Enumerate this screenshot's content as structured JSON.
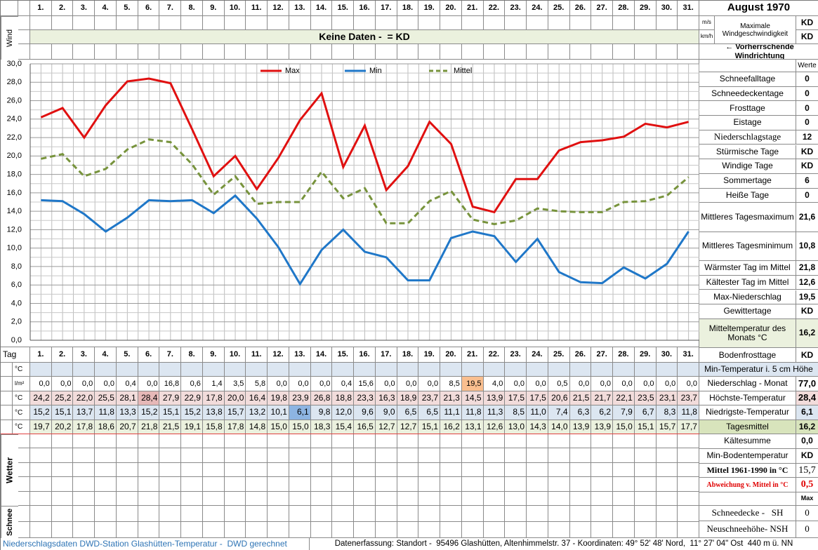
{
  "header": {
    "title": "August 1970"
  },
  "wind": {
    "label": "Wind",
    "no_data": "Keine Daten -  = KD",
    "units": [
      "m/s",
      "km/h"
    ],
    "max_label": "Maximale Windgeschwindigkeit",
    "max_values": [
      "KD",
      "KD"
    ],
    "direction": "← Vorherrschende Windrichtung"
  },
  "chart_data": {
    "type": "line",
    "categories": [
      "1.",
      "2.",
      "3.",
      "4.",
      "5.",
      "6.",
      "7.",
      "8.",
      "9.",
      "10.",
      "11.",
      "12.",
      "13.",
      "14.",
      "15.",
      "16.",
      "17.",
      "18.",
      "19.",
      "20.",
      "21.",
      "22.",
      "23.",
      "24.",
      "25.",
      "26.",
      "27.",
      "28.",
      "29.",
      "30.",
      "31."
    ],
    "series": [
      {
        "name": "Max",
        "color": "#e01010",
        "values": [
          24.2,
          25.2,
          22.0,
          25.5,
          28.1,
          28.4,
          27.9,
          22.9,
          17.8,
          20.0,
          16.4,
          19.8,
          23.9,
          26.8,
          18.8,
          23.3,
          16.3,
          18.9,
          23.7,
          21.3,
          14.5,
          13.9,
          17.5,
          17.5,
          20.6,
          21.5,
          21.7,
          22.1,
          23.5,
          23.1,
          23.7
        ],
        "value_labels": [
          "24,2",
          "25,2",
          "22,0",
          "25,5",
          "28,1",
          "28,4",
          "27,9",
          "22,9",
          "17,8",
          "20,0",
          "16,4",
          "19,8",
          "23,9",
          "26,8",
          "18,8",
          "23,3",
          "16,3",
          "18,9",
          "23,7",
          "21,3",
          "14,5",
          "13,9",
          "17,5",
          "17,5",
          "20,6",
          "21,5",
          "21,7",
          "22,1",
          "23,5",
          "23,1",
          "23,7"
        ]
      },
      {
        "name": "Min",
        "color": "#1f77c8",
        "values": [
          15.2,
          15.1,
          13.7,
          11.8,
          13.3,
          15.2,
          15.1,
          15.2,
          13.8,
          15.7,
          13.2,
          10.1,
          6.1,
          9.8,
          12.0,
          9.6,
          9.0,
          6.5,
          6.5,
          11.1,
          11.8,
          11.3,
          8.5,
          11.0,
          7.4,
          6.3,
          6.2,
          7.9,
          6.7,
          8.3,
          11.8
        ],
        "value_labels": [
          "15,2",
          "15,1",
          "13,7",
          "11,8",
          "13,3",
          "15,2",
          "15,1",
          "15,2",
          "13,8",
          "15,7",
          "13,2",
          "10,1",
          "6,1",
          "9,8",
          "12,0",
          "9,6",
          "9,0",
          "6,5",
          "6,5",
          "11,1",
          "11,8",
          "11,3",
          "8,5",
          "11,0",
          "7,4",
          "6,3",
          "6,2",
          "7,9",
          "6,7",
          "8,3",
          "11,8"
        ]
      },
      {
        "name": "Mittel",
        "color": "#77933c",
        "dashed": true,
        "values": [
          19.7,
          20.2,
          17.8,
          18.6,
          20.7,
          21.8,
          21.5,
          19.1,
          15.8,
          17.8,
          14.8,
          15.0,
          15.0,
          18.3,
          15.4,
          16.5,
          12.7,
          12.7,
          15.1,
          16.2,
          13.1,
          12.6,
          13.0,
          14.3,
          14.0,
          13.9,
          13.9,
          15.0,
          15.1,
          15.7,
          17.7
        ],
        "value_labels": [
          "19,7",
          "20,2",
          "17,8",
          "18,6",
          "20,7",
          "21,8",
          "21,5",
          "19,1",
          "15,8",
          "17,8",
          "14,8",
          "15,0",
          "15,0",
          "18,3",
          "15,4",
          "16,5",
          "12,7",
          "12,7",
          "15,1",
          "16,2",
          "13,1",
          "12,6",
          "13,0",
          "14,3",
          "14,0",
          "13,9",
          "13,9",
          "15,0",
          "15,1",
          "15,7",
          "17,7"
        ]
      }
    ],
    "ylim": [
      0,
      30
    ],
    "yticks": [
      {
        "value": 0,
        "label": "0,0"
      },
      {
        "value": 2,
        "label": "2,0"
      },
      {
        "value": 4,
        "label": "4,0"
      },
      {
        "value": 6,
        "label": "6,0"
      },
      {
        "value": 8,
        "label": "8,0"
      },
      {
        "value": 10,
        "label": "10,0"
      },
      {
        "value": 12,
        "label": "12,0"
      },
      {
        "value": 14,
        "label": "14,0"
      },
      {
        "value": 16,
        "label": "16,0"
      },
      {
        "value": 18,
        "label": "18,0"
      },
      {
        "value": 20,
        "label": "20,0"
      },
      {
        "value": 22,
        "label": "22,0"
      },
      {
        "value": 24,
        "label": "24,0"
      },
      {
        "value": 26,
        "label": "26,0"
      },
      {
        "value": 28,
        "label": "28,0"
      },
      {
        "value": 30,
        "label": "30,0"
      }
    ],
    "grid": true,
    "legend": "top"
  },
  "table": {
    "day_label": "Tag",
    "units": [
      "°C",
      "l/m²",
      "°C",
      "°C",
      "°C"
    ],
    "precipitation": {
      "values": [
        0,
        0,
        0,
        0,
        0.4,
        0,
        16.8,
        0.6,
        1.4,
        3.5,
        5.8,
        0,
        0,
        0,
        0.4,
        15.6,
        0,
        0,
        0,
        8.5,
        19.5,
        4.0,
        0,
        0,
        0.5,
        0,
        0,
        0,
        0,
        0,
        0
      ],
      "value_labels": [
        "0,0",
        "0,0",
        "0,0",
        "0,0",
        "0,4",
        "0,0",
        "16,8",
        "0,6",
        "1,4",
        "3,5",
        "5,8",
        "0,0",
        "0,0",
        "0,0",
        "0,4",
        "15,6",
        "0,0",
        "0,0",
        "0,0",
        "8,5",
        "19,5",
        "4,0",
        "0,0",
        "0,0",
        "0,5",
        "0,0",
        "0,0",
        "0,0",
        "0,0",
        "0,0",
        "0,0"
      ]
    }
  },
  "stats": {
    "header": "Werte",
    "rows": [
      {
        "label": "Schneefalltage",
        "value": "0"
      },
      {
        "label": "Schneedeckentage",
        "value": "0"
      },
      {
        "label": "Frosttage",
        "value": "0"
      },
      {
        "label": "Eistage",
        "value": "0"
      },
      {
        "label": "Niederschlagstage",
        "value": "12"
      },
      {
        "label": "Stürmische Tage",
        "value": "KD"
      },
      {
        "label": "Windige Tage",
        "value": "KD"
      },
      {
        "label": "Sommertage",
        "value": "6"
      },
      {
        "label": "Heiße Tage",
        "value": "0"
      },
      {
        "label": "Mittleres Tagesmaximum",
        "value": "21,6"
      },
      {
        "label": "Mittleres Tagesminimum",
        "value": "10,8"
      },
      {
        "label": "Wärmster Tag im Mittel",
        "value": "21,8"
      },
      {
        "label": "Kältester Tag im Mittel",
        "value": "12,6"
      },
      {
        "label": "Max-Niederschlag",
        "value": "19,5"
      },
      {
        "label": "Gewittertage",
        "value": "KD"
      },
      {
        "label": "Mitteltemperatur des Monats °C",
        "value": "16,2"
      },
      {
        "label": "Bodenfrosttage",
        "value": "KD"
      }
    ]
  },
  "lower_stats": {
    "rows": [
      {
        "label": "Min-Temperatur i. 5 cm Höhe"
      },
      {
        "label": "Niederschlag - Monat",
        "value": "77,0"
      },
      {
        "label": "Höchste-Temperatur",
        "value": "28,4"
      },
      {
        "label": "Niedrigste-Temperatur",
        "value": "6,1"
      },
      {
        "label": "Tagesmittel",
        "value": "16,2"
      },
      {
        "label": "Kältesumme",
        "value": "0,0"
      },
      {
        "label": "Min-Bodentemperatur",
        "value": "KD"
      },
      {
        "label": "Mittel 1961-1990 in °C",
        "value": "15,7"
      },
      {
        "label": "Abweichung v. Mittel in °C",
        "value": "0,5"
      },
      {
        "value": "Max"
      },
      {
        "label": "Schneedecke -   SH",
        "value": "0"
      },
      {
        "label": "Neuschneehöhe- NSH",
        "value": "0"
      }
    ]
  },
  "weather_label": "Wetter",
  "snow_label": "Schnee",
  "footer": {
    "source": "Niederschlagsdaten DWD-Station Glashütten-Temperatur -  DWD gerechnet",
    "location": "Datenerfassung: Standort -  95496 Glashütten, Altenhimmelstr. 37 - Koordinaten: 49° 52' 48' Nord,  11° 27' 04\" Ost  440 m ü. NN"
  }
}
